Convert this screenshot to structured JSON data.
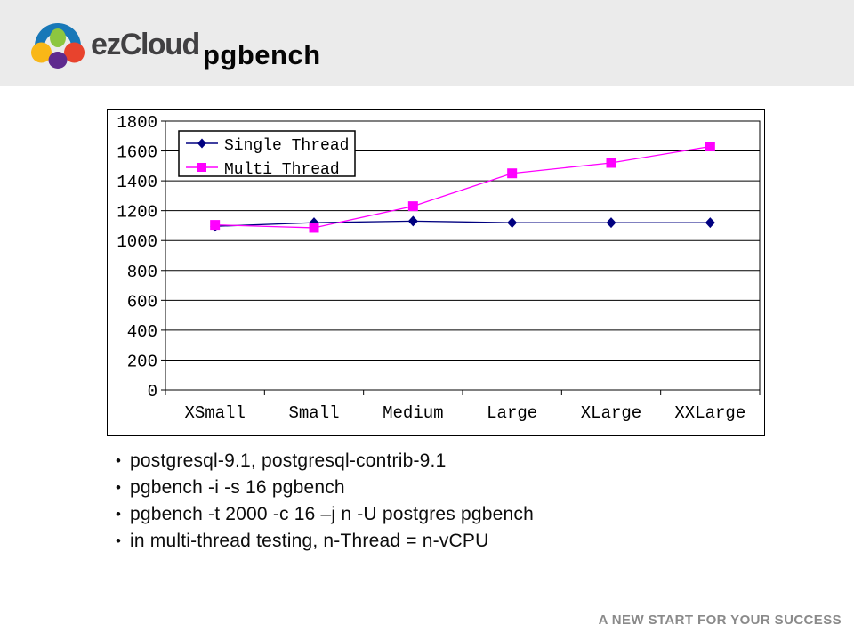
{
  "header": {
    "logo_text": "ezCloud",
    "title": "pgbench",
    "logo_colors": {
      "blue": "#1878b8",
      "green": "#8dc63f",
      "yellow": "#f9b717",
      "red": "#e8432d",
      "purple": "#5f2a8e"
    }
  },
  "chart_data": {
    "type": "line",
    "title": "",
    "xlabel": "",
    "ylabel": "",
    "categories": [
      "XSmall",
      "Small",
      "Medium",
      "Large",
      "XLarge",
      "XXLarge"
    ],
    "series": [
      {
        "name": "Single Thread",
        "color": "#000080",
        "marker": "diamond",
        "values": [
          1095,
          1120,
          1130,
          1120,
          1120,
          1120
        ]
      },
      {
        "name": "Multi Thread",
        "color": "#ff00ff",
        "marker": "square",
        "values": [
          1105,
          1085,
          1230,
          1450,
          1520,
          1630
        ]
      }
    ],
    "ylim": [
      0,
      1800
    ],
    "ytick_step": 200,
    "grid": true,
    "legend_position": "top-left"
  },
  "content": {
    "bullets": [
      "postgresql-9.1, postgresql-contrib-9.1",
      "pgbench -i -s 16 pgbench",
      "pgbench -t 2000 -c 16 –j n -U postgres pgbench",
      "in multi-thread testing, n-Thread = n-vCPU"
    ]
  },
  "footer": {
    "tagline": "A NEW START FOR YOUR SUCCESS"
  },
  "colors": {
    "header_band": "#ebebeb",
    "footer_text": "#8a8a8a",
    "single_thread": "#000080",
    "multi_thread": "#ff00ff"
  }
}
